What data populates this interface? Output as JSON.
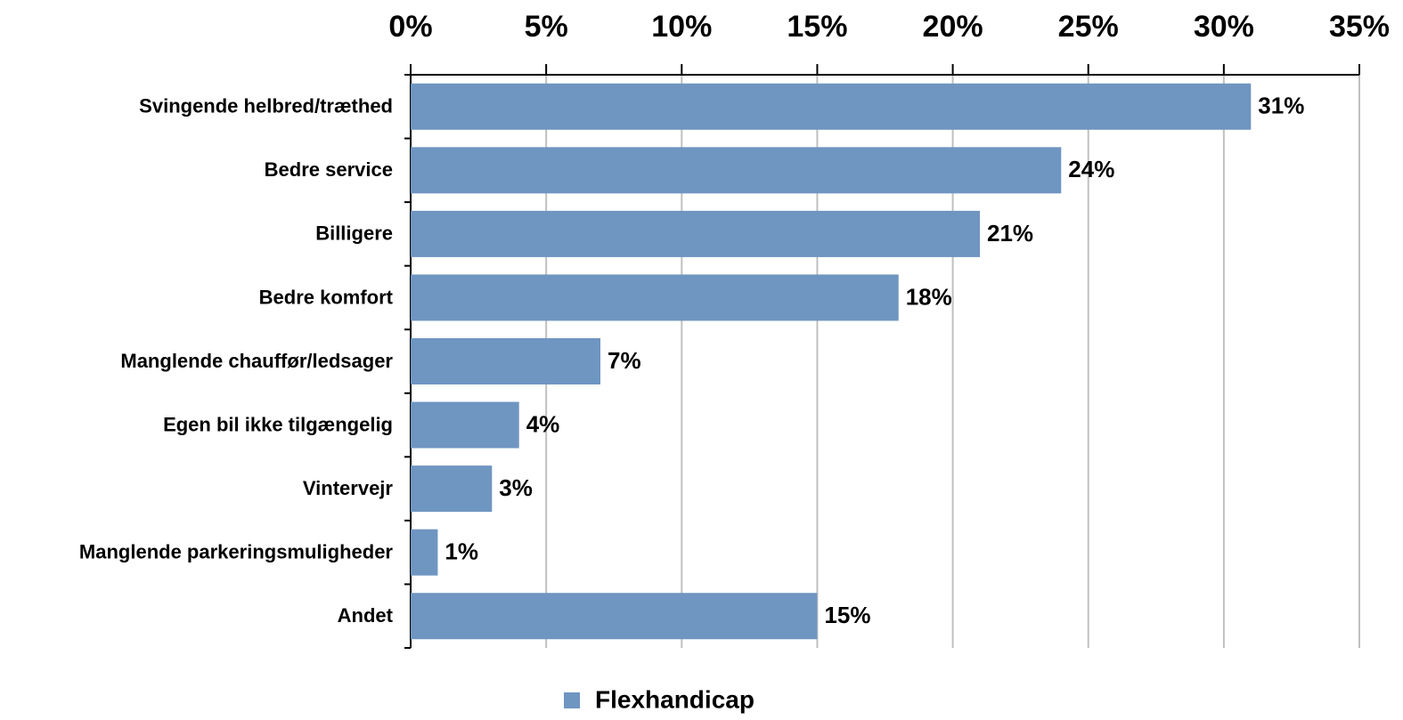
{
  "chart_data": {
    "type": "bar",
    "orientation": "horizontal",
    "categories": [
      "Svingende helbred/træthed",
      "Bedre service",
      "Billigere",
      "Bedre komfort",
      "Manglende chauffør/ledsager",
      "Egen bil ikke tilgængelig",
      "Vintervejr",
      "Manglende parkeringsmuligheder",
      "Andet"
    ],
    "series": [
      {
        "name": "Flexhandicap",
        "color": "#6f95c1",
        "values": [
          31,
          24,
          21,
          18,
          7,
          4,
          3,
          1,
          15
        ],
        "value_labels": [
          "31%",
          "24%",
          "21%",
          "18%",
          "7%",
          "4%",
          "3%",
          "1%",
          "15%"
        ]
      }
    ],
    "xlim": [
      0,
      35
    ],
    "xticks": [
      {
        "value": 0,
        "label": "0%"
      },
      {
        "value": 5,
        "label": "5%"
      },
      {
        "value": 10,
        "label": "10%"
      },
      {
        "value": 15,
        "label": "15%"
      },
      {
        "value": 20,
        "label": "20%"
      },
      {
        "value": 25,
        "label": "25%"
      },
      {
        "value": 30,
        "label": "30%"
      },
      {
        "value": 35,
        "label": "35%"
      }
    ],
    "grid": true,
    "legend": "bottom"
  }
}
